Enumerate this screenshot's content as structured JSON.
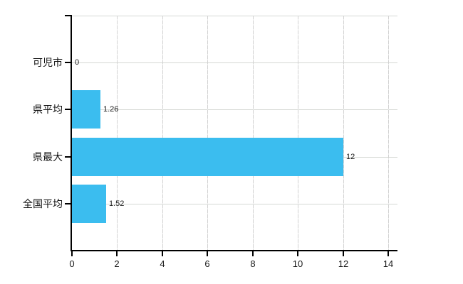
{
  "chart": {
    "bar_color": "#3bbdef",
    "grid_color": "#d5d8d4",
    "axis_color": "#000000",
    "text_color": "#111111",
    "background_color": "#ffffff"
  },
  "chart_data": {
    "type": "bar",
    "orientation": "horizontal",
    "title": "",
    "xlabel": "",
    "ylabel": "",
    "categories": [
      "可児市",
      "県平均",
      "県最大",
      "全国平均"
    ],
    "values": [
      0,
      1.26,
      12,
      1.52
    ],
    "value_labels": [
      "0",
      "1.26",
      "12",
      "1.52"
    ],
    "xlim": [
      0,
      14
    ],
    "xticks": [
      0,
      2,
      4,
      6,
      8,
      10,
      12,
      14
    ],
    "xtick_labels": [
      "0",
      "2",
      "4",
      "6",
      "8",
      "10",
      "12",
      "14"
    ],
    "grid": true,
    "legend": false
  }
}
